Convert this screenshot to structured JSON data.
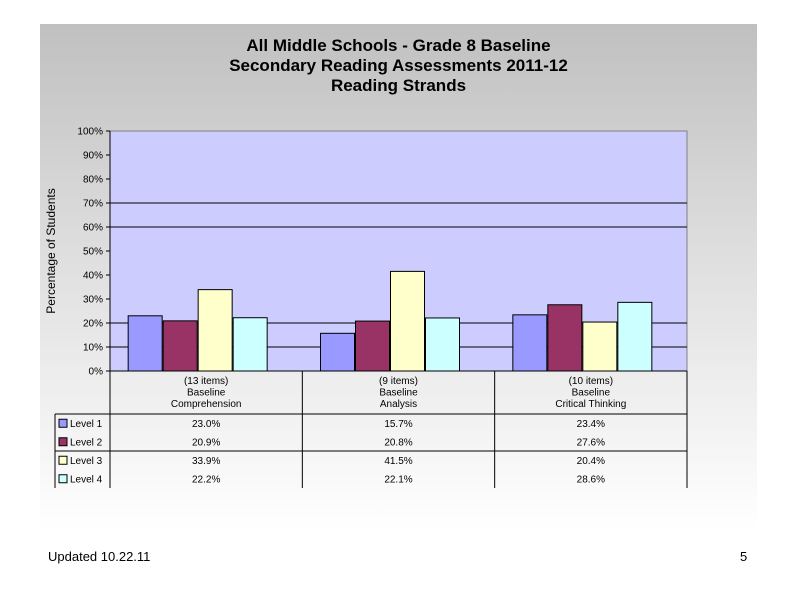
{
  "footer": {
    "updated": "Updated  10.22.11",
    "page_number": "5"
  },
  "chart_data": {
    "type": "bar",
    "title": [
      "All Middle Schools - Grade 8 Baseline",
      "Secondary Reading Assessments 2011-12",
      "Reading Strands"
    ],
    "ylabel": "Percentage of Students",
    "ylim": [
      0,
      100
    ],
    "y_ticks": [
      "0%",
      "10%",
      "20%",
      "30%",
      "40%",
      "50%",
      "60%",
      "70%",
      "80%",
      "90%",
      "100%"
    ],
    "gridlines": [
      10,
      20,
      60,
      70
    ],
    "plot_background": "#ccccff",
    "categories": [
      [
        "(13 items)",
        "Baseline",
        "Comprehension"
      ],
      [
        "(9 items)",
        "Baseline",
        "Analysis"
      ],
      [
        "(10 items)",
        "Baseline",
        "Critical Thinking"
      ]
    ],
    "series": [
      {
        "name": "Level 1",
        "color": "#9999ff",
        "values": [
          23.0,
          15.7,
          23.4
        ],
        "labels": [
          "23.0%",
          "15.7%",
          "23.4%"
        ]
      },
      {
        "name": "Level 2",
        "color": "#993366",
        "values": [
          20.9,
          20.8,
          27.6
        ],
        "labels": [
          "20.9%",
          "20.8%",
          "27.6%"
        ]
      },
      {
        "name": "Level 3",
        "color": "#ffffcc",
        "values": [
          33.9,
          41.5,
          20.4
        ],
        "labels": [
          "33.9%",
          "41.5%",
          "20.4%"
        ]
      },
      {
        "name": "Level 4",
        "color": "#ccffff",
        "values": [
          22.2,
          22.1,
          28.6
        ],
        "labels": [
          "22.2%",
          "22.1%",
          "28.6%"
        ]
      }
    ]
  }
}
